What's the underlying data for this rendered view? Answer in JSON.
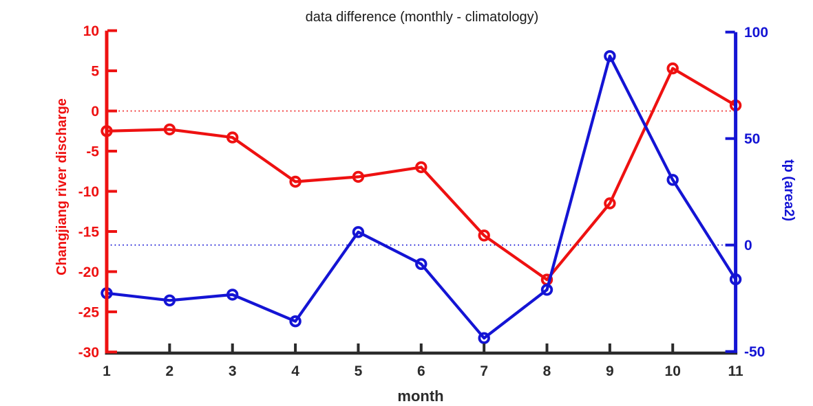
{
  "chart_data": {
    "type": "line",
    "title": "data difference (monthly - climatology)",
    "xlabel": "month",
    "x": [
      1,
      2,
      3,
      4,
      5,
      6,
      7,
      8,
      9,
      10,
      11
    ],
    "x_tick_labels": [
      "1",
      "2",
      "3",
      "4",
      "5",
      "6",
      "7",
      "8",
      "9",
      "10",
      "11"
    ],
    "x_axis_color": "#2b2b2b",
    "grid": false,
    "legend": "none",
    "background": "#ffffff",
    "left_axis": {
      "label": "Changjiang river discharge",
      "color": "#ee1111",
      "ylim": [
        -30,
        10
      ],
      "ticks": [
        10,
        5,
        0,
        -5,
        -10,
        -15,
        -20,
        -25,
        -30
      ],
      "zero_line_style": "dotted"
    },
    "right_axis": {
      "label": "tp (area2)",
      "color": "#1414d4",
      "ylim": [
        -50,
        100
      ],
      "ticks": [
        100,
        50,
        0,
        -50
      ],
      "zero_line_style": "dotted"
    },
    "series": [
      {
        "name": "Changjiang river discharge",
        "axis": "left",
        "color": "#ee1111",
        "marker": "circle",
        "values": [
          -2.5,
          -2.3,
          -3.3,
          -8.8,
          -8.2,
          -7.0,
          -15.5,
          -21.0,
          -11.5,
          5.3,
          0.7
        ]
      },
      {
        "name": "tp (area2)",
        "axis": "right",
        "color": "#1414d4",
        "marker": "circle",
        "values": [
          -22.6,
          -26.0,
          -23.3,
          -35.8,
          6.1,
          -8.9,
          -43.7,
          -21.0,
          88.7,
          30.6,
          -16.1
        ]
      }
    ]
  }
}
